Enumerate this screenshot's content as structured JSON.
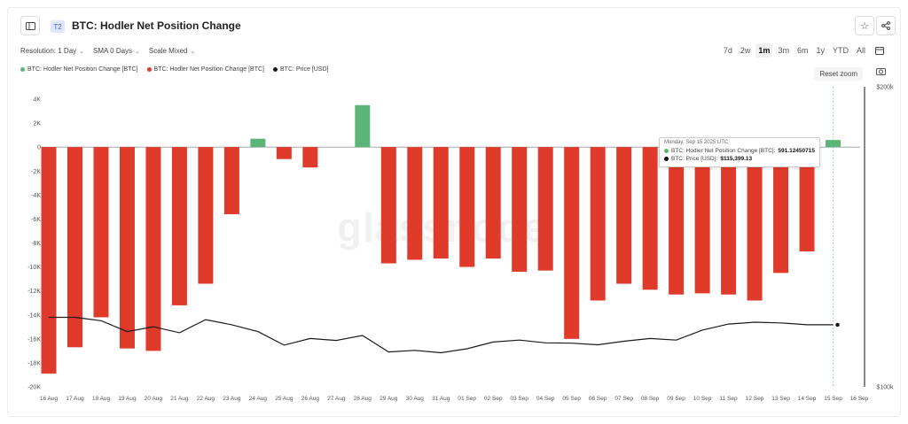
{
  "header": {
    "tier_badge": "T2",
    "title": "BTC: Hodler Net Position Change",
    "sidebar_icon": "sidebar-toggle-icon",
    "star_icon": "star-icon",
    "share_icon": "share-icon"
  },
  "controls": {
    "resolution": "Resolution: 1 Day",
    "sma": "SMA 0 Days",
    "scale": "Scale Mixed"
  },
  "ranges": [
    "7d",
    "2w",
    "1m",
    "3m",
    "6m",
    "1y",
    "YTD",
    "All"
  ],
  "active_range": "1m",
  "reset_zoom": "Reset zoom",
  "watermark": "glassnode",
  "tooltip": {
    "date": "Monday, Sep 15 2025 UTC",
    "row1_label": "BTC: Hodler Net Position Change [BTC]:",
    "row1_value": "591.12450715",
    "row2_label": "BTC: Price [USD]:",
    "row2_value": "$115,399.13"
  },
  "colors": {
    "positive": "#5bb578",
    "negative": "#e03a2a",
    "price": "#1a1a1a"
  },
  "chart_data": {
    "type": "bar",
    "legend": [
      {
        "label": "BTC: Hodler Net Position Change [BTC]",
        "color": "#5bb578"
      },
      {
        "label": "BTC: Hodler Net Position Change [BTC]",
        "color": "#e03a2a"
      },
      {
        "label": "BTC: Price [USD]",
        "color": "#1a1a1a"
      }
    ],
    "categories": [
      "16 Aug",
      "17 Aug",
      "18 Aug",
      "19 Aug",
      "20 Aug",
      "21 Aug",
      "22 Aug",
      "23 Aug",
      "24 Aug",
      "25 Aug",
      "26 Aug",
      "27 Aug",
      "28 Aug",
      "29 Aug",
      "30 Aug",
      "31 Aug",
      "01 Sep",
      "02 Sep",
      "03 Sep",
      "04 Sep",
      "05 Sep",
      "06 Sep",
      "07 Sep",
      "08 Sep",
      "09 Sep",
      "10 Sep",
      "11 Sep",
      "12 Sep",
      "13 Sep",
      "14 Sep",
      "15 Sep",
      "16 Sep"
    ],
    "series": [
      {
        "name": "BTC: Hodler Net Position Change [BTC]",
        "values": [
          -18900,
          -16700,
          -14200,
          -16800,
          -17000,
          -13200,
          -11400,
          -5600,
          700,
          -1000,
          -1700,
          0,
          3500,
          -9700,
          -9400,
          -9300,
          -10000,
          -9300,
          -10400,
          -10300,
          -16000,
          -12800,
          -11400,
          -11900,
          -12300,
          -12200,
          -12300,
          -12800,
          -10500,
          -8700,
          591,
          null
        ]
      },
      {
        "name": "BTC: Price [USD]",
        "values": [
          117400,
          117400,
          116500,
          113600,
          114900,
          113300,
          116800,
          115400,
          113600,
          110100,
          111800,
          111300,
          112600,
          108400,
          108800,
          108200,
          109200,
          110900,
          111400,
          110700,
          110600,
          110200,
          111100,
          111800,
          111400,
          114000,
          115600,
          116100,
          115900,
          115400,
          115400,
          null
        ]
      }
    ],
    "ylim": [
      -20000,
      4000
    ],
    "y_ticks": [
      "4K",
      "2K",
      "0",
      "-2K",
      "-4K",
      "-6K",
      "-8K",
      "-10K",
      "-12K",
      "-14K",
      "-16K",
      "-18K",
      "-20K"
    ],
    "y_tick_values": [
      4000,
      2000,
      0,
      -2000,
      -4000,
      -6000,
      -8000,
      -10000,
      -12000,
      -14000,
      -16000,
      -18000,
      -20000
    ],
    "y2_scale": "log",
    "y2lim": [
      100000,
      200000
    ],
    "y2_ticks": [
      "$200k",
      "$100k"
    ],
    "grid": false,
    "legend_position": "top-left"
  }
}
